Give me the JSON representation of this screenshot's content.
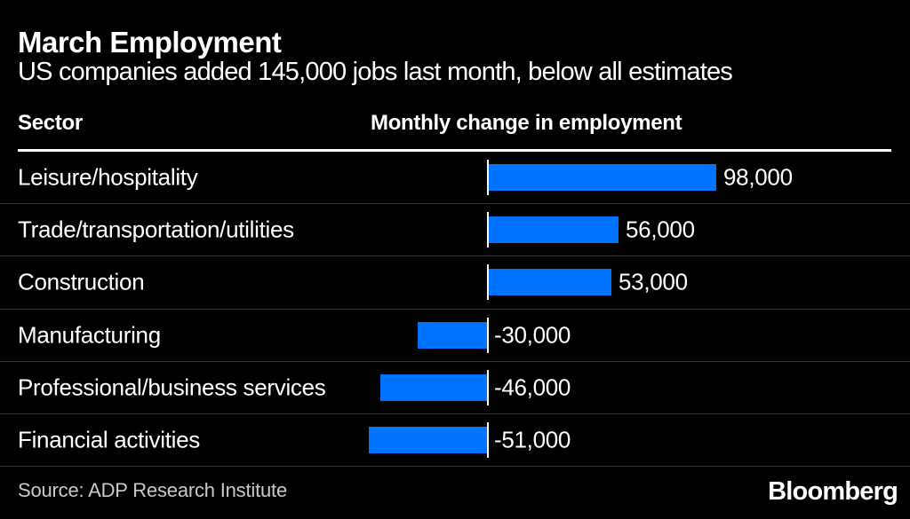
{
  "header": {
    "title": "March Employment",
    "subtitle": "US companies added 145,000 jobs last month, below all estimates"
  },
  "columns": {
    "sector": "Sector",
    "measure": "Monthly change in employment"
  },
  "chart_data": {
    "type": "bar",
    "orientation": "horizontal",
    "title": "March Employment",
    "subtitle": "US companies added 145,000 jobs last month, below all estimates",
    "xlabel": "Monthly change in employment",
    "ylabel": "Sector",
    "categories": [
      "Leisure/hospitality",
      "Trade/transportation/utilities",
      "Construction",
      "Manufacturing",
      "Professional/business services",
      "Financial activities"
    ],
    "values": [
      98000,
      56000,
      53000,
      -30000,
      -46000,
      -51000
    ],
    "value_labels": [
      "98,000",
      "56,000",
      "53,000",
      "-30,000",
      "-46,000",
      "-51,000"
    ],
    "zero_baseline": true,
    "grid": "off",
    "legend": "none",
    "bar_color": "#0074ff"
  },
  "footer": {
    "source": "Source: ADP Research Institute",
    "brand": "Bloomberg"
  },
  "colors": {
    "background": "#000000",
    "text": "#ffffff",
    "bar": "#0074ff",
    "divider": "#323232",
    "header_rule": "#ffffff",
    "source_text": "#c9c9c9"
  }
}
